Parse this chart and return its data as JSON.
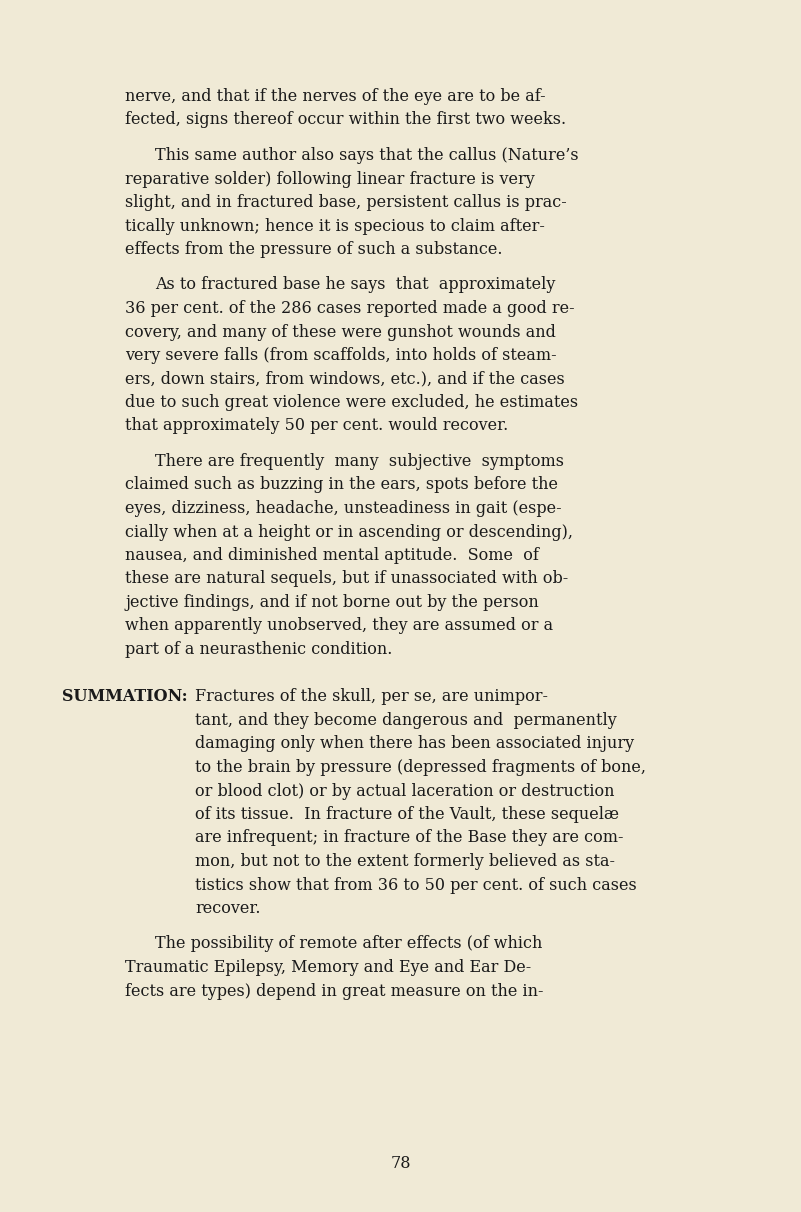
{
  "background_color": "#f0ead6",
  "text_color": "#1a1a1a",
  "page_number": "78",
  "font_size": 11.5,
  "figwidth": 8.01,
  "figheight": 12.12,
  "dpi": 100,
  "paragraphs": [
    {
      "type": "continuation",
      "indent_first": false,
      "lines": [
        "nerve, and that if the nerves of the eye are to be af-",
        "fected, signs thereof occur within the first two weeks."
      ]
    },
    {
      "type": "body",
      "indent_first": true,
      "lines": [
        "This same author also says that the callus (Nature’s",
        "reparative solder) following linear fracture is very",
        "slight, and in fractured base, persistent callus is prac-",
        "tically unknown; hence it is specious to claim after-",
        "effects from the pressure of such a substance."
      ]
    },
    {
      "type": "body",
      "indent_first": true,
      "lines": [
        "As to fractured base he says  that  approximately",
        "36 per cent. of the 286 cases reported made a good re-",
        "covery, and many of these were gunshot wounds and",
        "very severe falls (from scaffolds, into holds of steam-",
        "ers, down stairs, from windows, etc.), and if the cases",
        "due to such great violence were excluded, he estimates",
        "that approximately 50 per cent. would recover."
      ]
    },
    {
      "type": "body",
      "indent_first": true,
      "lines": [
        "There are frequently  many  subjective  symptoms",
        "claimed such as buzzing in the ears, spots before the",
        "eyes, dizziness, headache, unsteadiness in gait (espe-",
        "cially when at a height or in ascending or descending),",
        "nausea, and diminished mental aptitude.  Some  of",
        "these are natural sequels, but if unassociated with ob-",
        "jective findings, and if not borne out by the person",
        "when apparently unobserved, they are assumed or a",
        "part of a neurasthenic condition."
      ]
    },
    {
      "type": "summation",
      "label": "SUMMATION:",
      "lines": [
        "Fractures of the skull, per se, are unimpor-",
        "tant, and they become dangerous and  permanently",
        "damaging only when there has been associated injury",
        "to the brain by pressure (depressed fragments of bone,",
        "or blood clot) or by actual laceration or destruction",
        "of its tissue.  In fracture of the Vault, these sequelæ",
        "are infrequent; in fracture of the Base they are com-",
        "mon, but not to the extent formerly believed as sta-",
        "tistics show that from 36 to 50 per cent. of such cases",
        "recover."
      ]
    },
    {
      "type": "body",
      "indent_first": true,
      "lines": [
        "The possibility of remote after effects (of which",
        "Traumatic Epilepsy, Memory and Eye and Ear De-",
        "fects are types) depend in great measure on the in-"
      ]
    }
  ]
}
